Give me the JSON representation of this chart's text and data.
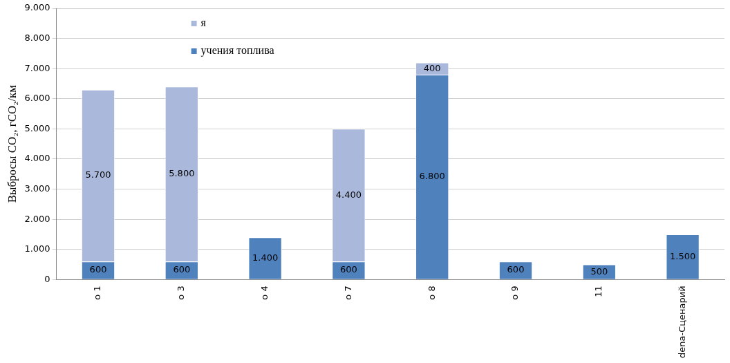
{
  "chart_data": {
    "type": "bar",
    "stacked": true,
    "ylabel": "Выбросы CO₂, гCO₂/км",
    "categories": [
      "o 1",
      "o 3",
      "o 4",
      "o 7",
      "o 8",
      "o 9",
      "11",
      "dena-Сценарий"
    ],
    "series": [
      {
        "name": "учения топлива",
        "color": "#4f81bd",
        "values": [
          600,
          600,
          1400,
          600,
          6800,
          600,
          500,
          1500
        ],
        "value_labels": [
          "600",
          "600",
          "1.400",
          "600",
          "6.800",
          "600",
          "500",
          "1.500"
        ]
      },
      {
        "name": "я",
        "color": "#aab9db",
        "values": [
          5700,
          5800,
          null,
          4400,
          400,
          null,
          null,
          null
        ],
        "value_labels": [
          "5.700",
          "5.800",
          null,
          "4.400",
          "400",
          null,
          null,
          null
        ]
      }
    ],
    "ylim": [
      0,
      9000
    ],
    "yticks": [
      {
        "value": 0,
        "label": "0"
      },
      {
        "value": 1000,
        "label": "1.000"
      },
      {
        "value": 2000,
        "label": "2.000"
      },
      {
        "value": 3000,
        "label": "3.000"
      },
      {
        "value": 4000,
        "label": "4.000"
      },
      {
        "value": 5000,
        "label": "5.000"
      },
      {
        "value": 6000,
        "label": "6.000"
      },
      {
        "value": 7000,
        "label": "7.000"
      },
      {
        "value": 8000,
        "label": "8.000"
      },
      {
        "value": 9000,
        "label": "9.000"
      }
    ],
    "grid": "y",
    "legend": "top left"
  }
}
